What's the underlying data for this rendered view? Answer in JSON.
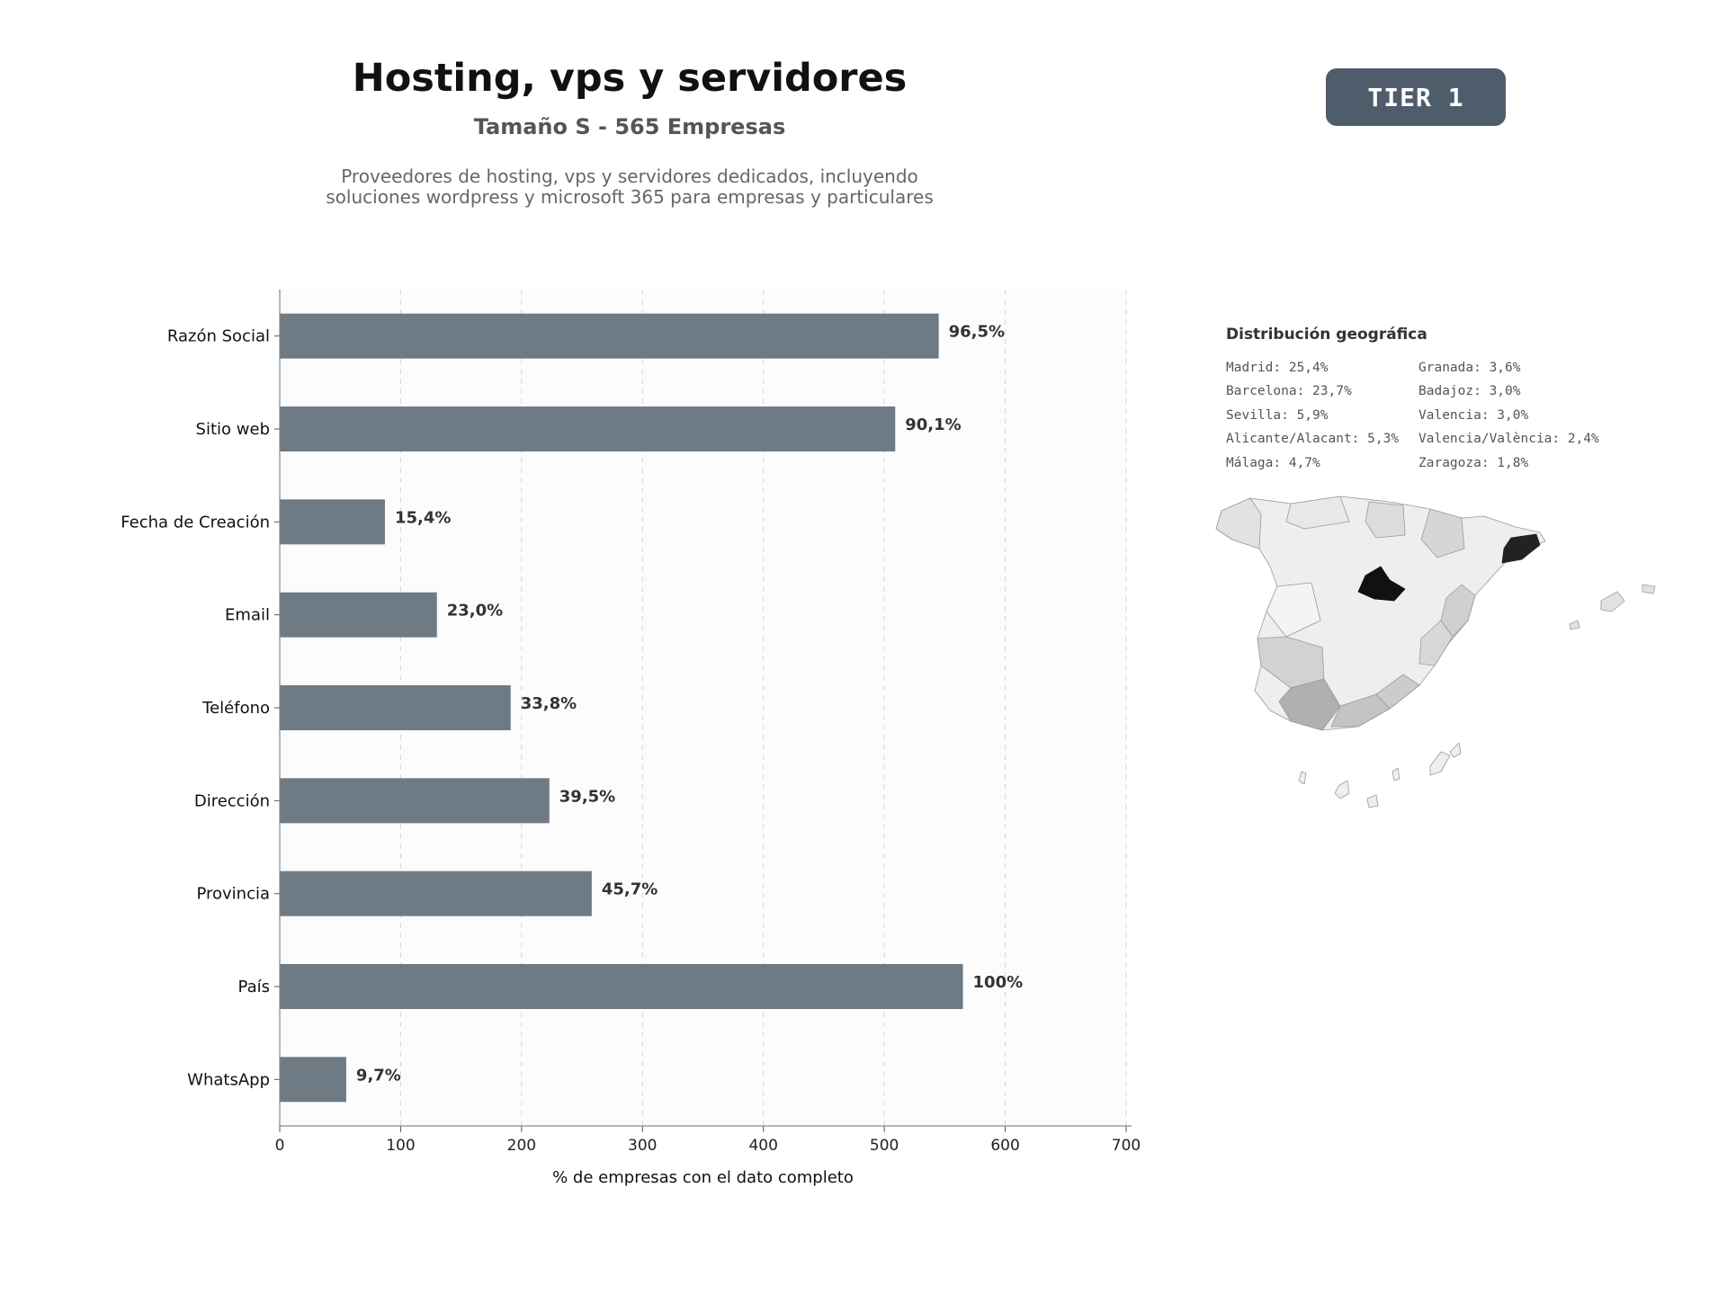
{
  "header": {
    "title": "Hosting, vps y servidores",
    "subtitle": "Tamaño S - 565 Empresas",
    "description_lines": [
      "Proveedores de hosting, vps y servidores dedicados, incluyendo",
      "soluciones wordpress y microsoft 365 para empresas y particulares"
    ],
    "badge": "TIER 1"
  },
  "chart_data": {
    "type": "bar",
    "orientation": "horizontal",
    "categories": [
      "Razón Social",
      "Sitio web",
      "Fecha de Creación",
      "Email",
      "Teléfono",
      "Dirección",
      "Provincia",
      "País",
      "WhatsApp"
    ],
    "values": [
      545,
      509,
      87,
      130,
      191,
      223,
      258,
      565,
      55
    ],
    "labels": [
      "96,5%",
      "90,1%",
      "15,4%",
      "23,0%",
      "33,8%",
      "39,5%",
      "45,7%",
      "100%",
      "9,7%"
    ],
    "xlabel": "% de empresas con el dato completo",
    "xlim": [
      0,
      700
    ],
    "xticks": [
      0,
      100,
      200,
      300,
      400,
      500,
      600,
      700
    ],
    "grid": "vertical dashed",
    "bar_color": "#6e7a84"
  },
  "geo": {
    "title": "Distribución geográfica",
    "items": [
      "Madrid: 25,4%",
      "Barcelona: 23,7%",
      "Sevilla: 5,9%",
      "Alicante/Alacant: 5,3%",
      "Málaga: 4,7%",
      "Granada: 3,6%",
      "Badajoz: 3,0%",
      "Valencia: 3,0%",
      "Valencia/València: 2,4%",
      "Zaragoza: 1,8%"
    ],
    "map_highlight_colors": [
      "#111111",
      "#222222",
      "#b0b0b0",
      "#c4c4c4",
      "#cccccc"
    ],
    "map_base_color": "#eeeeee"
  }
}
